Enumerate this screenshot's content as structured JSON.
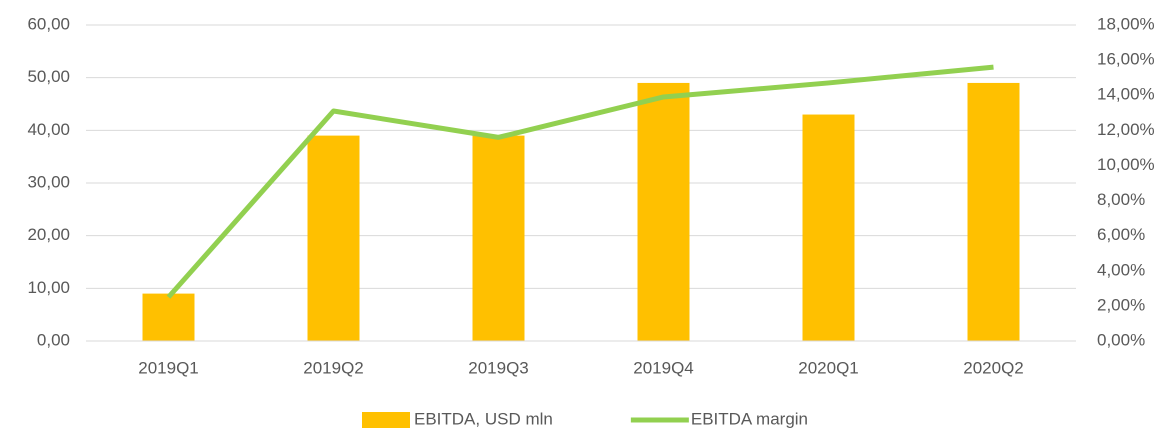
{
  "chart_data": {
    "type": "bar_line",
    "categories": [
      "2019Q1",
      "2019Q2",
      "2019Q3",
      "2019Q4",
      "2020Q1",
      "2020Q2"
    ],
    "series": [
      {
        "name": "EBITDA, USD mln",
        "color": "#ffc000",
        "type": "bar",
        "values": [
          9,
          39,
          39,
          49,
          43,
          49
        ]
      },
      {
        "name": "EBITDA margin",
        "color": "#92d050",
        "type": "line",
        "axis": "y2",
        "values": [
          2.5,
          13.1,
          11.6,
          13.9,
          14.7,
          15.6
        ]
      }
    ],
    "ylim": [
      0,
      60
    ],
    "yticks": [
      {
        "value": 0,
        "label": "0,00"
      },
      {
        "value": 10,
        "label": "10,00"
      },
      {
        "value": 20,
        "label": "20,00"
      },
      {
        "value": 30,
        "label": "30,00"
      },
      {
        "value": 40,
        "label": "40,00"
      },
      {
        "value": 50,
        "label": "50,00"
      },
      {
        "value": 60,
        "label": "60,00"
      }
    ],
    "y2lim": [
      0,
      18
    ],
    "y2ticks": [
      {
        "value": 0,
        "label": "0,00%"
      },
      {
        "value": 2,
        "label": "2,00%"
      },
      {
        "value": 4,
        "label": "4,00%"
      },
      {
        "value": 6,
        "label": "6,00%"
      },
      {
        "value": 8,
        "label": "8,00%"
      },
      {
        "value": 10,
        "label": "10,00%"
      },
      {
        "value": 12,
        "label": "12,00%"
      },
      {
        "value": 14,
        "label": "14,00%"
      },
      {
        "value": 16,
        "label": "16,00%"
      },
      {
        "value": 18,
        "label": "18,00%"
      }
    ],
    "grid": true,
    "legend": "bottom"
  }
}
